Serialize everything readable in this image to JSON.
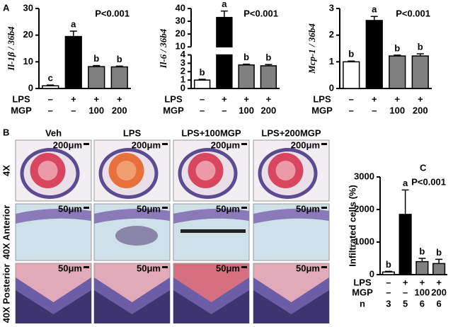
{
  "panel_labels": [
    "A",
    "B",
    "C"
  ],
  "chart_data": [
    {
      "type": "bar",
      "y_label": "Il-1β / 36b4",
      "p_text": "P<0.001",
      "rows": [
        {
          "name": "LPS",
          "labels": [
            "–",
            "+",
            "+",
            "+"
          ]
        },
        {
          "name": "MGP",
          "labels": [
            "–",
            "–",
            "100",
            "200"
          ]
        }
      ],
      "values": [
        1,
        19.5,
        8.2,
        8.1
      ],
      "errors": [
        0.3,
        2,
        0.4,
        0.3
      ],
      "letters": [
        "c",
        "a",
        "b",
        "b"
      ],
      "colors": [
        "#ffffff",
        "#000000",
        "#808080",
        "#808080"
      ],
      "ylim": [
        0,
        30
      ],
      "yticks": [
        0,
        10,
        20,
        30
      ]
    },
    {
      "type": "bar",
      "y_label": "Il-6 / 36b4",
      "p_text": "P<0.001",
      "rows": [
        {
          "name": "LPS",
          "labels": [
            "–",
            "+",
            "+",
            "+"
          ]
        },
        {
          "name": "MGP",
          "labels": [
            "–",
            "–",
            "100",
            "200"
          ]
        }
      ],
      "values": [
        1.0,
        33,
        2.8,
        2.7
      ],
      "errors": [
        0.1,
        5,
        0.1,
        0.15
      ],
      "letters": [
        "b",
        "a",
        "b",
        "b"
      ],
      "colors": [
        "#ffffff",
        "#000000",
        "#808080",
        "#808080"
      ],
      "ylim": [
        0,
        40
      ],
      "axis_break": [
        4,
        10
      ],
      "yticks": [
        0,
        1,
        2,
        3,
        4,
        10,
        20,
        30,
        40
      ]
    },
    {
      "type": "bar",
      "y_label": "Mcp-1 / 36b4",
      "p_text": "P<0.001",
      "rows": [
        {
          "name": "LPS",
          "labels": [
            "–",
            "+",
            "+",
            "+"
          ]
        },
        {
          "name": "MGP",
          "labels": [
            "–",
            "–",
            "100",
            "200"
          ]
        }
      ],
      "values": [
        1.0,
        2.55,
        1.22,
        1.22
      ],
      "errors": [
        0.03,
        0.15,
        0.03,
        0.08
      ],
      "letters": [
        "b",
        "a",
        "b",
        "b"
      ],
      "colors": [
        "#ffffff",
        "#000000",
        "#808080",
        "#808080"
      ],
      "ylim": [
        0,
        3
      ],
      "yticks": [
        0,
        1,
        2,
        3
      ]
    },
    {
      "type": "bar",
      "y_label": "Infiltrated cells (%)",
      "p_text": "P<0.001",
      "rows": [
        {
          "name": "LPS",
          "labels": [
            "–",
            "+",
            "+",
            "+"
          ]
        },
        {
          "name": "MGP",
          "labels": [
            "–",
            "–",
            "100",
            "200"
          ]
        },
        {
          "name": "n",
          "labels": [
            3,
            5,
            6,
            6
          ]
        }
      ],
      "values": [
        80,
        1850,
        400,
        340
      ],
      "errors": [
        20,
        750,
        100,
        130
      ],
      "letters": [
        "b",
        "a",
        "b",
        "b"
      ],
      "colors": [
        "#ffffff",
        "#000000",
        "#808080",
        "#808080"
      ],
      "ylim": [
        0,
        3000
      ],
      "yticks": [
        0,
        1000,
        2000,
        3000
      ]
    }
  ],
  "micrographs": {
    "columns": [
      "Veh",
      "LPS",
      "LPS+100MGP",
      "LPS+200MGP"
    ],
    "rows": [
      "4X",
      "40X Anterior",
      "40X Posterior"
    ],
    "scale_bars": [
      "200μm",
      "50μm",
      "50μm"
    ]
  }
}
